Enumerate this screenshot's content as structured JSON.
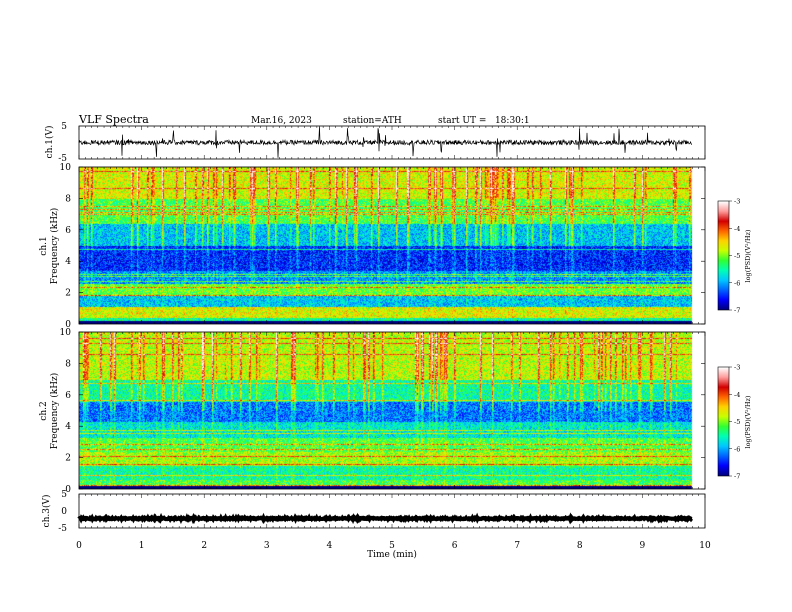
{
  "header": {
    "title": "VLF Spectra",
    "date": "Mar.16, 2023",
    "station": "station=ATH",
    "start": "start UT =   18:30:1"
  },
  "colors": {
    "colormap": [
      "#000080",
      "#0000ff",
      "#0064ff",
      "#00c8ff",
      "#00ffb4",
      "#32ff32",
      "#c8ff00",
      "#ffd200",
      "#ff6400",
      "#d20000",
      "#ff9b9b",
      "#ffffff"
    ],
    "trace": "#000000"
  },
  "chart_data": [
    {
      "type": "line",
      "name": "ch1-waveform",
      "ylabel": "ch.1(V)",
      "ylim": [
        -5,
        5
      ],
      "y_ticks": [
        "5",
        "-5"
      ],
      "xlim": [
        0,
        10
      ],
      "baseline": 0,
      "noise_amplitude": 0.7,
      "spike_count": 30
    },
    {
      "type": "heatmap",
      "name": "ch1-spectrogram",
      "ylabel_top": "ch.1",
      "ylabel": "Frequency (kHz)",
      "ylim": [
        0,
        10
      ],
      "y_ticks": [
        "0",
        "2",
        "4",
        "6",
        "8",
        "10"
      ],
      "xlim": [
        0,
        10
      ],
      "data_end_minute": 9.8,
      "colorbar": {
        "label": "log(PSD)(V²/Hz)",
        "range": [
          -7,
          -3
        ],
        "ticks": [
          "-3",
          "-4",
          "-5",
          "-6",
          "-7"
        ]
      },
      "band_profile_kHz": [
        {
          "from": 0,
          "to": 0.4,
          "level": -5.5
        },
        {
          "from": 0.4,
          "to": 1.1,
          "level": -4.7
        },
        {
          "from": 1.1,
          "to": 1.8,
          "level": -5.9
        },
        {
          "from": 1.8,
          "to": 2.6,
          "level": -5.1
        },
        {
          "from": 2.6,
          "to": 3.4,
          "level": -6.1
        },
        {
          "from": 3.4,
          "to": 5.0,
          "level": -6.5
        },
        {
          "from": 5.0,
          "to": 6.4,
          "level": -5.9
        },
        {
          "from": 6.4,
          "to": 8.0,
          "level": -5.2
        },
        {
          "from": 8.0,
          "to": 10.0,
          "level": -4.7
        }
      ],
      "spheric_count": 90
    },
    {
      "type": "heatmap",
      "name": "ch2-spectrogram",
      "ylabel_top": "ch.2",
      "ylabel": "Frequency (kHz)",
      "ylim": [
        0,
        10
      ],
      "y_ticks": [
        "0",
        "2",
        "4",
        "6",
        "8",
        "10"
      ],
      "xlim": [
        0,
        10
      ],
      "data_end_minute": 9.8,
      "colorbar": {
        "label": "log(PSD)(V²/Hz)",
        "range": [
          -7,
          -3
        ],
        "ticks": [
          "-3",
          "-4",
          "-5",
          "-6",
          "-7"
        ]
      },
      "band_profile_kHz": [
        {
          "from": 0,
          "to": 0.6,
          "level": -5.2
        },
        {
          "from": 0.6,
          "to": 1.5,
          "level": -5.5
        },
        {
          "from": 1.5,
          "to": 2.4,
          "level": -4.9
        },
        {
          "from": 2.4,
          "to": 3.3,
          "level": -5.2
        },
        {
          "from": 3.3,
          "to": 4.3,
          "level": -5.7
        },
        {
          "from": 4.3,
          "to": 5.6,
          "level": -6.2
        },
        {
          "from": 5.6,
          "to": 7.0,
          "level": -5.5
        },
        {
          "from": 7.0,
          "to": 10.0,
          "level": -4.8
        }
      ],
      "spheric_count": 90
    },
    {
      "type": "line",
      "name": "ch3-waveform",
      "ylabel": "ch.3(V)",
      "ylim": [
        -5,
        5
      ],
      "y_ticks": [
        "5",
        "0",
        "-5"
      ],
      "xlim": [
        0,
        10
      ],
      "baseline": -2.2,
      "noise_amplitude": 0.2,
      "spike_count": 0
    }
  ],
  "x_axis": {
    "label": "Time (min)",
    "ticks": [
      "0",
      "1",
      "2",
      "3",
      "4",
      "5",
      "6",
      "7",
      "8",
      "9",
      "10"
    ]
  }
}
